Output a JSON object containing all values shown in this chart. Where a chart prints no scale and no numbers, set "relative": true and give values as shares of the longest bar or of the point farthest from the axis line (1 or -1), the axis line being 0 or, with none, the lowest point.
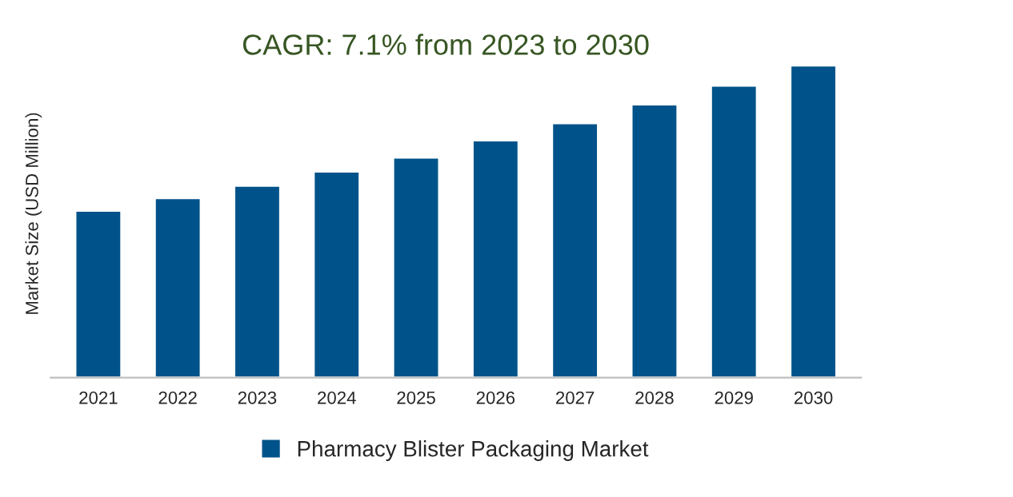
{
  "chart_data": {
    "type": "bar",
    "title": "CAGR: 7.1% from 2023 to 2030",
    "ylabel": "Market Size (USD Million)",
    "relative": true,
    "categories": [
      "2021",
      "2022",
      "2023",
      "2024",
      "2025",
      "2026",
      "2027",
      "2028",
      "2029",
      "2030"
    ],
    "series": [
      {
        "name": "Pharmacy Blister Packaging Market",
        "color": "#00538a",
        "values": [
          0.535,
          0.575,
          0.615,
          0.66,
          0.705,
          0.76,
          0.815,
          0.875,
          0.935,
          1
        ]
      }
    ],
    "legend": "bottom",
    "grid": false
  }
}
